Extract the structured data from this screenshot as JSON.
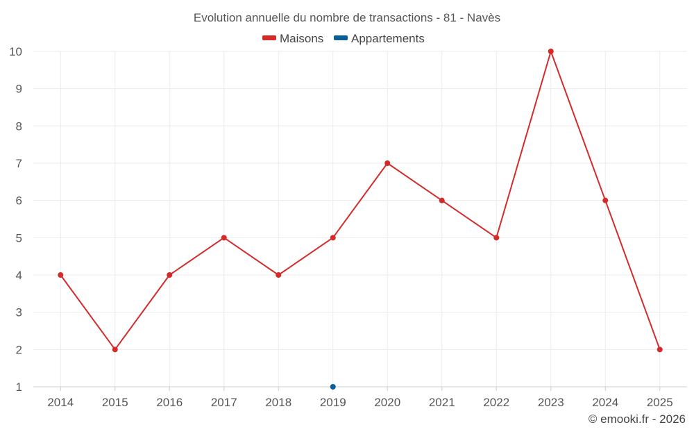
{
  "chart_data": {
    "type": "line",
    "title": "Evolution annuelle du nombre de transactions - 81 - Navès",
    "categories": [
      "2014",
      "2015",
      "2016",
      "2017",
      "2018",
      "2019",
      "2020",
      "2021",
      "2022",
      "2023",
      "2024",
      "2025"
    ],
    "series": [
      {
        "name": "Maisons",
        "color": "#d42a2a",
        "values": [
          4,
          2,
          4,
          5,
          4,
          5,
          7,
          6,
          5,
          10,
          6,
          2
        ]
      },
      {
        "name": "Appartements",
        "color": "#0a5f99",
        "values": [
          null,
          null,
          null,
          null,
          null,
          1,
          null,
          null,
          null,
          null,
          null,
          null
        ]
      }
    ],
    "yticks": [
      1,
      2,
      3,
      4,
      5,
      6,
      7,
      8,
      9,
      10
    ],
    "ylim": [
      1,
      10
    ],
    "xlabel": "",
    "ylabel": "",
    "grid": true,
    "legend_position": "top-center"
  },
  "credit": "© emooki.fr - 2026"
}
